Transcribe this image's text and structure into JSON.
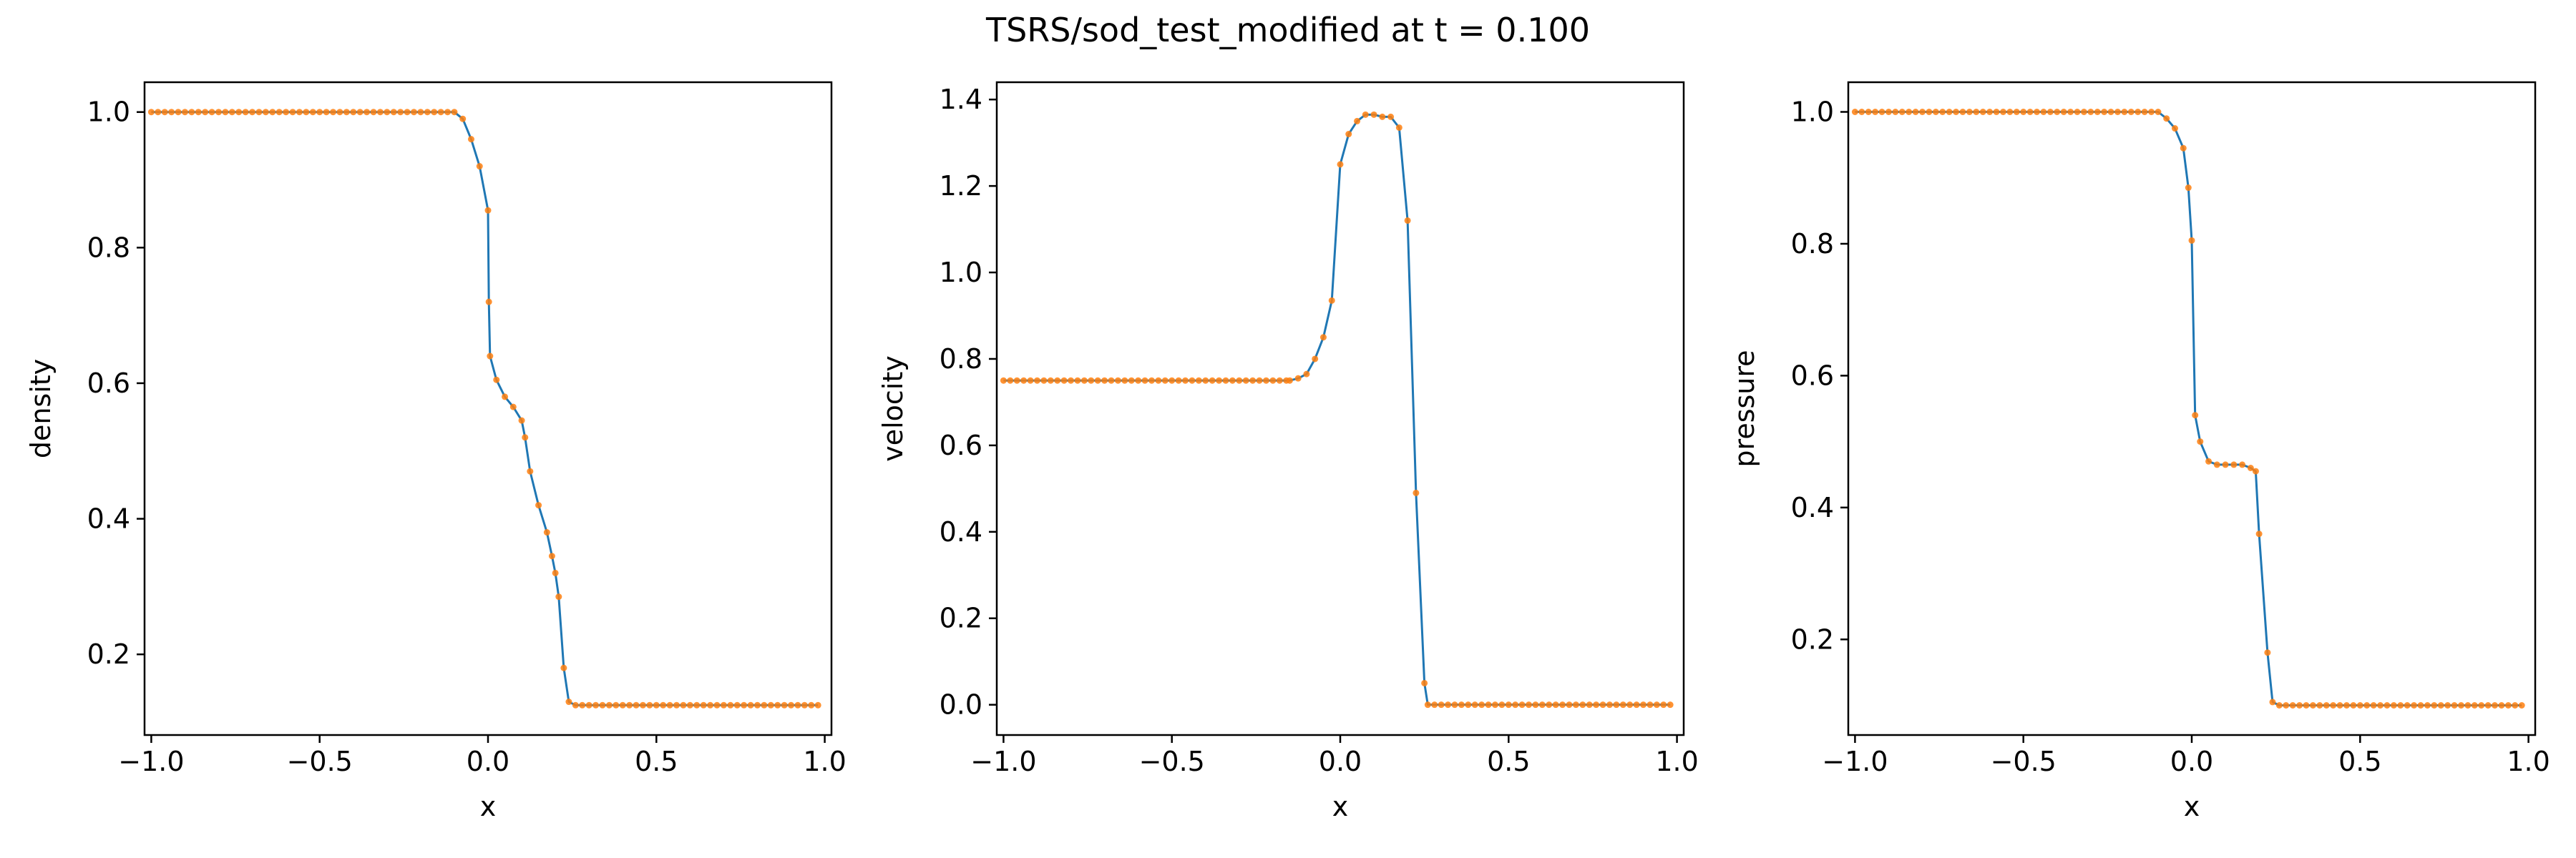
{
  "figure": {
    "title": "TSRS/sod_test_modified at t = 0.100"
  },
  "colors": {
    "line": "#1f77b4",
    "markers": "#ff7f0e",
    "axes": "#000000",
    "background": "#ffffff"
  },
  "chart_data": [
    {
      "type": "line",
      "title": "",
      "xlabel": "x",
      "ylabel": "density",
      "xlim": [
        -1.02,
        1.02
      ],
      "ylim": [
        0.081,
        1.044
      ],
      "xticks": [
        -1.0,
        -0.5,
        0.0,
        0.5,
        1.0
      ],
      "xtick_labels": [
        "−1.0",
        "−0.5",
        "0.0",
        "0.5",
        "1.0"
      ],
      "yticks": [
        0.2,
        0.4,
        0.6,
        0.8,
        1.0
      ],
      "ytick_labels": [
        "0.2",
        "0.4",
        "0.6",
        "0.8",
        "1.0"
      ],
      "grid": false,
      "legend": "none",
      "series": [
        {
          "style": "line with dot markers",
          "points": [
            [
              -0.1,
              1.0
            ],
            [
              -0.075,
              0.99
            ],
            [
              -0.05,
              0.96
            ],
            [
              -0.025,
              0.92
            ],
            [
              0.0,
              0.855
            ],
            [
              0.0025,
              0.72
            ],
            [
              0.006,
              0.64
            ],
            [
              0.025,
              0.605
            ],
            [
              0.05,
              0.58
            ],
            [
              0.075,
              0.565
            ],
            [
              0.1,
              0.545
            ],
            [
              0.11,
              0.52
            ],
            [
              0.125,
              0.47
            ],
            [
              0.15,
              0.42
            ],
            [
              0.175,
              0.38
            ],
            [
              0.19,
              0.345
            ],
            [
              0.2,
              0.32
            ],
            [
              0.21,
              0.285
            ],
            [
              0.225,
              0.18
            ],
            [
              0.24,
              0.13
            ],
            [
              0.26,
              0.125
            ]
          ],
          "left_state": {
            "from": -1.0,
            "to": -0.1,
            "value": 1.0
          },
          "right_state": {
            "from": 0.26,
            "to": 0.99,
            "value": 0.125
          }
        }
      ]
    },
    {
      "type": "line",
      "title": "",
      "xlabel": "x",
      "ylabel": "velocity",
      "xlim": [
        -1.02,
        1.02
      ],
      "ylim": [
        -0.07,
        1.44
      ],
      "xticks": [
        -1.0,
        -0.5,
        0.0,
        0.5,
        1.0
      ],
      "xtick_labels": [
        "−1.0",
        "−0.5",
        "0.0",
        "0.5",
        "1.0"
      ],
      "yticks": [
        0.0,
        0.2,
        0.4,
        0.6,
        0.8,
        1.0,
        1.2,
        1.4
      ],
      "ytick_labels": [
        "0.0",
        "0.2",
        "0.4",
        "0.6",
        "0.8",
        "1.0",
        "1.2",
        "1.4"
      ],
      "grid": false,
      "legend": "none",
      "series": [
        {
          "style": "line with dot markers",
          "points": [
            [
              -0.15,
              0.75
            ],
            [
              -0.125,
              0.755
            ],
            [
              -0.1,
              0.765
            ],
            [
              -0.075,
              0.8
            ],
            [
              -0.05,
              0.85
            ],
            [
              -0.025,
              0.935
            ],
            [
              0.0,
              1.25
            ],
            [
              0.025,
              1.32
            ],
            [
              0.05,
              1.35
            ],
            [
              0.075,
              1.365
            ],
            [
              0.1,
              1.365
            ],
            [
              0.125,
              1.36
            ],
            [
              0.15,
              1.36
            ],
            [
              0.175,
              1.335
            ],
            [
              0.2,
              1.12
            ],
            [
              0.225,
              0.49
            ],
            [
              0.25,
              0.05
            ],
            [
              0.26,
              0.0
            ]
          ],
          "left_state": {
            "from": -1.0,
            "to": -0.15,
            "value": 0.75
          },
          "right_state": {
            "from": 0.26,
            "to": 0.99,
            "value": 0.0
          }
        }
      ]
    },
    {
      "type": "line",
      "title": "",
      "xlabel": "x",
      "ylabel": "pressure",
      "xlim": [
        -1.02,
        1.02
      ],
      "ylim": [
        0.055,
        1.045
      ],
      "xticks": [
        -1.0,
        -0.5,
        0.0,
        0.5,
        1.0
      ],
      "xtick_labels": [
        "−1.0",
        "−0.5",
        "0.0",
        "0.5",
        "1.0"
      ],
      "yticks": [
        0.2,
        0.4,
        0.6,
        0.8,
        1.0
      ],
      "ytick_labels": [
        "0.2",
        "0.4",
        "0.6",
        "0.8",
        "1.0"
      ],
      "grid": false,
      "legend": "none",
      "series": [
        {
          "style": "line with dot markers",
          "points": [
            [
              -0.1,
              1.0
            ],
            [
              -0.075,
              0.99
            ],
            [
              -0.05,
              0.975
            ],
            [
              -0.025,
              0.945
            ],
            [
              -0.01,
              0.885
            ],
            [
              0.0,
              0.805
            ],
            [
              0.01,
              0.54
            ],
            [
              0.025,
              0.5
            ],
            [
              0.05,
              0.47
            ],
            [
              0.075,
              0.465
            ],
            [
              0.1,
              0.465
            ],
            [
              0.125,
              0.465
            ],
            [
              0.15,
              0.465
            ],
            [
              0.175,
              0.46
            ],
            [
              0.19,
              0.455
            ],
            [
              0.2,
              0.36
            ],
            [
              0.225,
              0.18
            ],
            [
              0.24,
              0.105
            ],
            [
              0.26,
              0.1
            ]
          ],
          "left_state": {
            "from": -1.0,
            "to": -0.1,
            "value": 1.0
          },
          "right_state": {
            "from": 0.26,
            "to": 0.99,
            "value": 0.1
          }
        }
      ]
    }
  ]
}
